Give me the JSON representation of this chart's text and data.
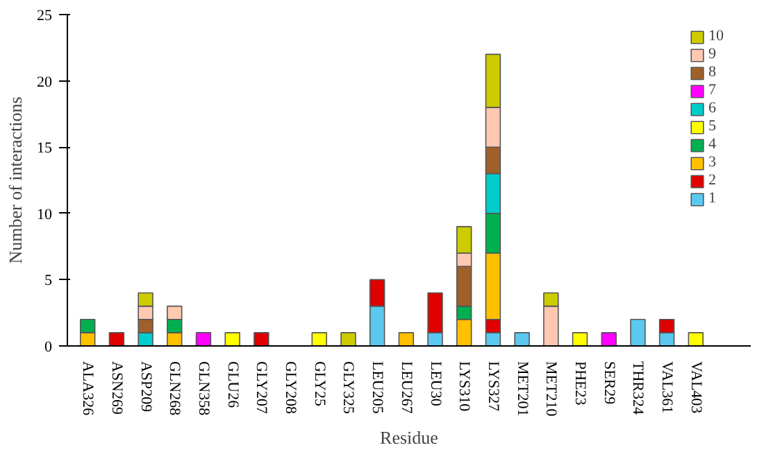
{
  "chart_data": {
    "type": "bar",
    "stacked": true,
    "xlabel": "Residue",
    "ylabel": "Number of interactions",
    "categories": [
      "ALA326",
      "ASN269",
      "ASP209",
      "GLN268",
      "GLN358",
      "GLU26",
      "GLY207",
      "GLY208",
      "GLY25",
      "GLY325",
      "LEU205",
      "LEU267",
      "LEU30",
      "LYS310",
      "LYS327",
      "MET201",
      "MET210",
      "PHE23",
      "SER29",
      "THR324",
      "VAL361",
      "VAL403"
    ],
    "series": [
      {
        "name": "1",
        "color": "#5bc8f0",
        "values": [
          0,
          0,
          0,
          0,
          0,
          0,
          0,
          0,
          0,
          0,
          3,
          0,
          1,
          0,
          1,
          1,
          0,
          0,
          0,
          2,
          1,
          0
        ]
      },
      {
        "name": "2",
        "color": "#e00000",
        "values": [
          0,
          1,
          0,
          0,
          0,
          0,
          1,
          0,
          0,
          0,
          2,
          0,
          3,
          0,
          1,
          0,
          0,
          0,
          0,
          0,
          1,
          0
        ]
      },
      {
        "name": "3",
        "color": "#ffc000",
        "values": [
          1,
          0,
          0,
          1,
          0,
          0,
          0,
          0,
          0,
          0,
          0,
          1,
          0,
          2,
          5,
          0,
          0,
          0,
          0,
          0,
          0,
          0
        ]
      },
      {
        "name": "4",
        "color": "#00b050",
        "values": [
          1,
          0,
          0,
          1,
          0,
          0,
          0,
          0,
          0,
          0,
          0,
          0,
          0,
          1,
          3,
          0,
          0,
          0,
          0,
          0,
          0,
          0
        ]
      },
      {
        "name": "5",
        "color": "#ffff00",
        "values": [
          0,
          0,
          0,
          0,
          0,
          1,
          0,
          0,
          1,
          0,
          0,
          0,
          0,
          0,
          0,
          0,
          0,
          1,
          0,
          0,
          0,
          1
        ]
      },
      {
        "name": "6",
        "color": "#00cccc",
        "values": [
          0,
          0,
          1,
          0,
          0,
          0,
          0,
          0,
          0,
          0,
          0,
          0,
          0,
          0,
          3,
          0,
          0,
          0,
          0,
          0,
          0,
          0
        ]
      },
      {
        "name": "7",
        "color": "#ff00ff",
        "values": [
          0,
          0,
          0,
          0,
          1,
          0,
          0,
          0,
          0,
          0,
          0,
          0,
          0,
          0,
          0,
          0,
          0,
          0,
          1,
          0,
          0,
          0
        ]
      },
      {
        "name": "8",
        "color": "#a0602a",
        "values": [
          0,
          0,
          1,
          0,
          0,
          0,
          0,
          0,
          0,
          0,
          0,
          0,
          0,
          3,
          2,
          0,
          0,
          0,
          0,
          0,
          0,
          0
        ]
      },
      {
        "name": "9",
        "color": "#ffc8b0",
        "values": [
          0,
          0,
          1,
          1,
          0,
          0,
          0,
          0,
          0,
          0,
          0,
          0,
          0,
          1,
          3,
          0,
          3,
          0,
          0,
          0,
          0,
          0
        ]
      },
      {
        "name": "10",
        "color": "#cccc00",
        "values": [
          0,
          0,
          1,
          0,
          0,
          0,
          0,
          0,
          0,
          1,
          0,
          0,
          0,
          2,
          4,
          0,
          1,
          0,
          0,
          0,
          0,
          0
        ]
      }
    ],
    "ylim": [
      0,
      25
    ],
    "yticks": [
      0,
      5,
      10,
      15,
      20,
      25
    ],
    "grid": false,
    "legend": "top right"
  }
}
